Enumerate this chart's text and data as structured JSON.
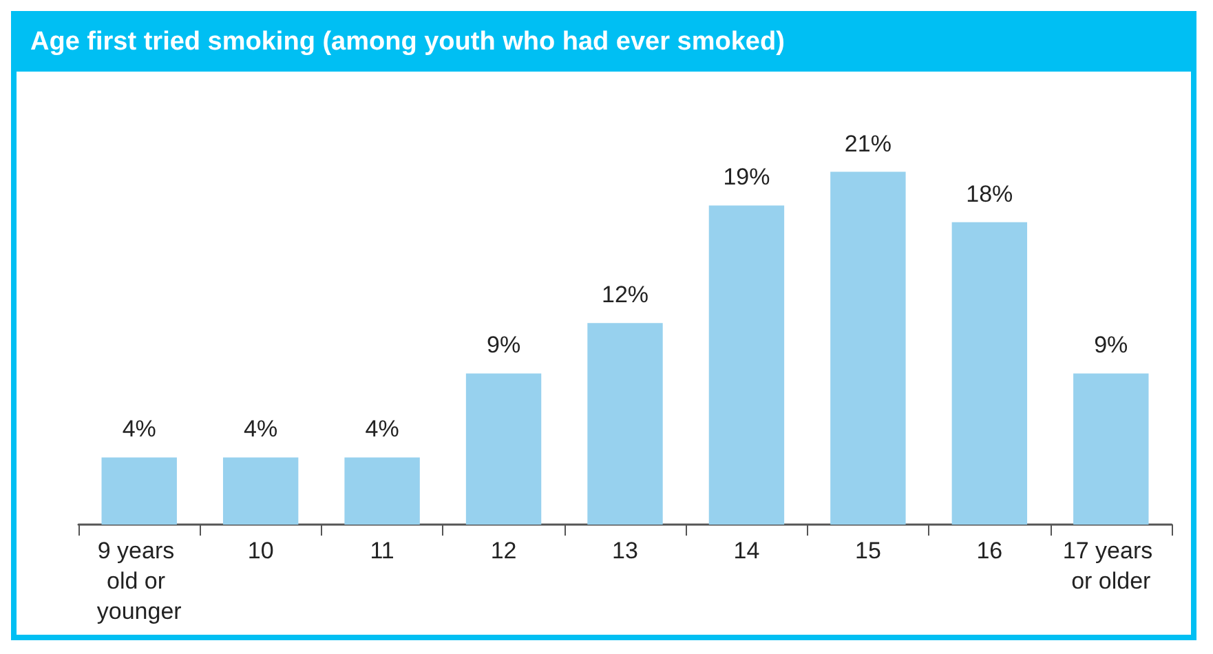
{
  "chart_data": {
    "type": "bar",
    "title": "Age first tried smoking (among youth who had ever smoked)",
    "categories": [
      "9 years old or younger",
      "10",
      "11",
      "12",
      "13",
      "14",
      "15",
      "16",
      "17 years or older"
    ],
    "values": [
      4,
      4,
      4,
      9,
      12,
      19,
      21,
      18,
      9
    ],
    "value_labels": [
      "4%",
      "4%",
      "4%",
      "9%",
      "12%",
      "19%",
      "21%",
      "18%",
      "9%"
    ],
    "color": "#97d1ee"
  }
}
